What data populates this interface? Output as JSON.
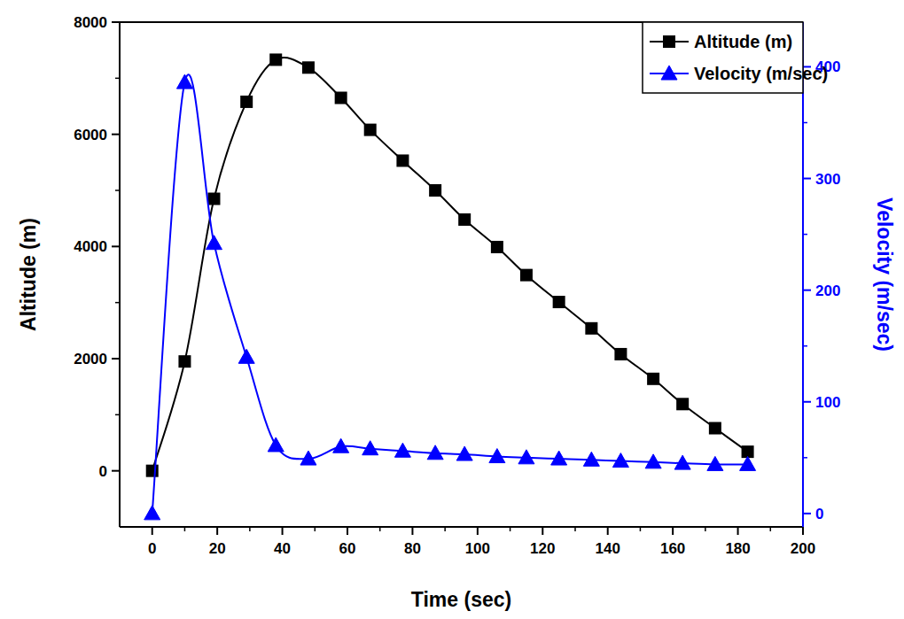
{
  "chart_data": {
    "type": "line",
    "x_label": "Time (sec)",
    "y_label": "Altitude (m)",
    "y2_label": "Velocity (m/sec)",
    "x": [
      0,
      10,
      19,
      29,
      38,
      48,
      58,
      67,
      77,
      87,
      96,
      106,
      115,
      125,
      135,
      144,
      154,
      163,
      173,
      183
    ],
    "series": [
      {
        "name": "Altitude (m)",
        "color": "#000000",
        "marker": "square",
        "line_style": "solid",
        "values": [
          0,
          1950,
          4850,
          6580,
          7330,
          7190,
          6650,
          6080,
          5530,
          5000,
          4480,
          3990,
          3490,
          3010,
          2540,
          2080,
          1640,
          1190,
          760,
          340
        ]
      },
      {
        "name": "Velocity (m/sec)",
        "color": "#0000ff",
        "marker": "triangle",
        "line_style": "solid",
        "axis": "y2",
        "values": [
          0,
          386,
          242,
          140,
          61,
          49,
          60,
          58,
          56,
          54,
          53,
          51,
          50,
          49,
          48,
          47,
          46,
          45,
          44,
          44
        ]
      }
    ],
    "xlim": [
      -10,
      200
    ],
    "xticks": [
      0,
      20,
      40,
      60,
      80,
      100,
      120,
      140,
      160,
      180,
      200
    ],
    "ylim": [
      -1000,
      8000
    ],
    "yticks": [
      0,
      2000,
      4000,
      6000,
      8000
    ],
    "y2lim": [
      -12,
      440
    ],
    "y2ticks": [
      0,
      100,
      200,
      300,
      400
    ],
    "grid": false,
    "legend": "upper right"
  }
}
